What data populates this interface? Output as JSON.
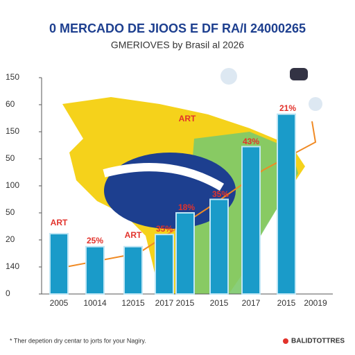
{
  "chart_data": {
    "type": "bar",
    "title": "0 MERCADO DE JIOOS E DF RA/I 24000265",
    "subtitle": "GMERIOVES by Brasil al 2026",
    "categories": [
      "2005",
      "10014",
      "12015",
      "2017",
      "2015",
      "2015",
      "2017",
      "2015",
      "20019"
    ],
    "values": [
      44.6,
      35,
      35,
      44,
      60,
      70,
      109,
      133,
      null
    ],
    "color": "#1a9bc9",
    "ylim": [
      0,
      160
    ],
    "yticks": [
      0,
      {
        "value": 20,
        "label": "140"
      },
      {
        "value": 40,
        "label": "20"
      },
      {
        "value": 60,
        "label": "50"
      },
      {
        "value": 80,
        "label": "100"
      },
      {
        "value": 100,
        "label": "50"
      },
      {
        "value": 120,
        "label": "150"
      },
      {
        "value": 140,
        "label": "60"
      },
      {
        "value": 160,
        "label": "150"
      }
    ],
    "grid": false,
    "annotations": [
      "ART",
      "25%",
      "ART",
      "35%",
      "18%",
      "35%",
      "43%",
      "21%",
      "ART"
    ],
    "footnote": "* Ther depetion dry centar to jorts for your Nagiry.",
    "source": "BALIDTOTTRES"
  }
}
